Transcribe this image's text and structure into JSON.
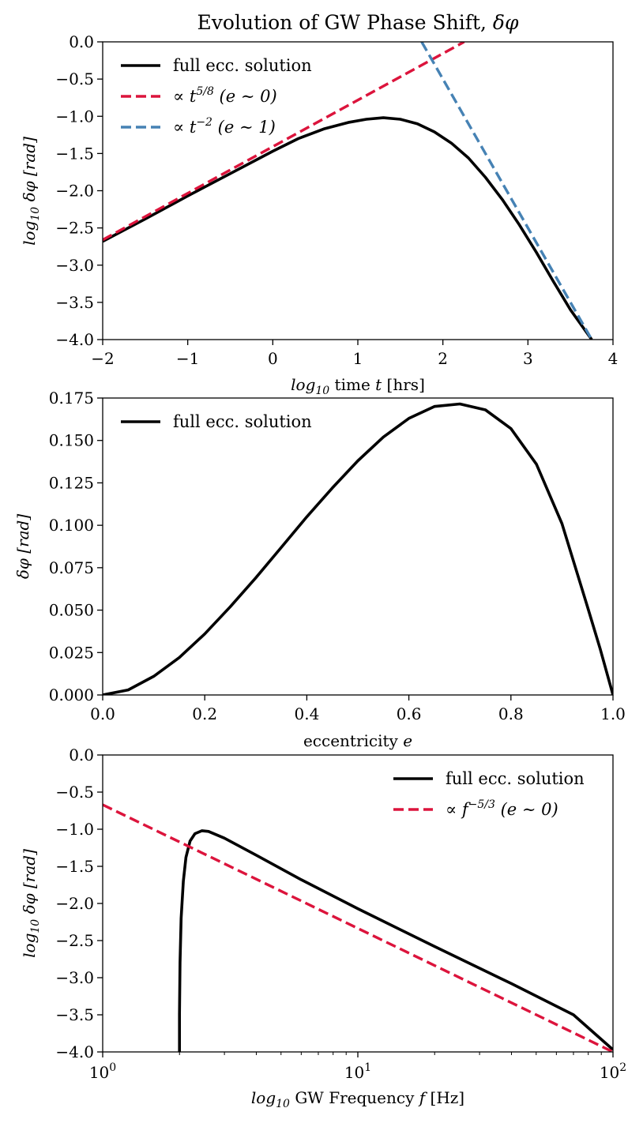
{
  "figure": {
    "title": "Evolution of GW Phase Shift, δφ"
  },
  "chart_data": [
    {
      "type": "line",
      "panel": "top",
      "xlabel": "log10 time  t [hrs]",
      "ylabel": "log10 δφ [rad]",
      "xlim": [
        -2,
        4
      ],
      "ylim": [
        -4.0,
        0.0
      ],
      "x_ticks": [
        "−2",
        "−1",
        "0",
        "1",
        "2",
        "3",
        "4"
      ],
      "y_ticks": [
        "0.0",
        "−0.5",
        "−1.0",
        "−1.5",
        "−2.0",
        "−2.5",
        "−3.0",
        "−3.5",
        "−4.0"
      ],
      "legend_position": "top-left",
      "series": [
        {
          "name": "full ecc. solution",
          "color": "#000000",
          "style": "solid",
          "x": [
            -2.0,
            -1.5,
            -1.0,
            -0.5,
            0.0,
            0.3,
            0.6,
            0.9,
            1.1,
            1.3,
            1.5,
            1.7,
            1.9,
            2.1,
            2.3,
            2.5,
            2.7,
            2.9,
            3.1,
            3.3,
            3.5,
            3.75
          ],
          "y": [
            -2.68,
            -2.38,
            -2.07,
            -1.77,
            -1.47,
            -1.3,
            -1.17,
            -1.08,
            -1.04,
            -1.02,
            -1.04,
            -1.1,
            -1.21,
            -1.36,
            -1.56,
            -1.82,
            -2.12,
            -2.46,
            -2.83,
            -3.22,
            -3.6,
            -4.0
          ]
        },
        {
          "name": "∝ t^{5/8} (e ∼ 0)",
          "color": "#dc143c",
          "style": "dashed",
          "x": [
            -2.0,
            2.25
          ],
          "y": [
            -2.66,
            0.0
          ]
        },
        {
          "name": "∝ t^{−2} (e ∼ 1)",
          "color": "#4682b4",
          "style": "dashed",
          "x": [
            1.75,
            3.75
          ],
          "y": [
            0.0,
            -4.0
          ]
        }
      ]
    },
    {
      "type": "line",
      "panel": "middle",
      "xlabel": "eccentricity e",
      "ylabel": "δφ [rad]",
      "xlim": [
        0.0,
        1.0
      ],
      "ylim": [
        0.0,
        0.175
      ],
      "x_ticks": [
        "0.0",
        "0.2",
        "0.4",
        "0.6",
        "0.8",
        "1.0"
      ],
      "y_ticks": [
        "0.175",
        "0.150",
        "0.125",
        "0.100",
        "0.075",
        "0.050",
        "0.025",
        "0.000"
      ],
      "legend_position": "top-left",
      "series": [
        {
          "name": "full ecc. solution",
          "color": "#000000",
          "style": "solid",
          "x": [
            0.0,
            0.05,
            0.1,
            0.15,
            0.2,
            0.25,
            0.3,
            0.35,
            0.4,
            0.45,
            0.5,
            0.55,
            0.6,
            0.65,
            0.7,
            0.75,
            0.8,
            0.85,
            0.9,
            0.95,
            0.975,
            1.0
          ],
          "y": [
            0.0,
            0.003,
            0.011,
            0.022,
            0.036,
            0.052,
            0.069,
            0.087,
            0.105,
            0.122,
            0.138,
            0.152,
            0.163,
            0.17,
            0.1715,
            0.168,
            0.157,
            0.136,
            0.101,
            0.052,
            0.027,
            0.0
          ]
        }
      ]
    },
    {
      "type": "line",
      "panel": "bottom",
      "xscale": "log",
      "xlabel": "log10 GW Frequency  f [Hz]",
      "ylabel": "log10 δφ [rad]",
      "xlim": [
        1,
        100
      ],
      "ylim": [
        -4.0,
        0.0
      ],
      "x_ticks": [
        "10^0",
        "10^1",
        "10^2"
      ],
      "y_ticks": [
        "0.0",
        "−0.5",
        "−1.0",
        "−1.5",
        "−2.0",
        "−2.5",
        "−3.0",
        "−3.5",
        "−4.0"
      ],
      "legend_position": "top-right",
      "series": [
        {
          "name": "full ecc. solution",
          "color": "#000000",
          "style": "solid",
          "x": [
            2.0,
            2.0,
            2.01,
            2.03,
            2.07,
            2.12,
            2.2,
            2.3,
            2.45,
            2.6,
            3.0,
            4.0,
            6.0,
            10.0,
            20.0,
            40.0,
            70.0,
            100.0
          ],
          "y": [
            -4.0,
            -3.5,
            -2.8,
            -2.2,
            -1.7,
            -1.38,
            -1.16,
            -1.06,
            -1.02,
            -1.03,
            -1.12,
            -1.35,
            -1.68,
            -2.07,
            -2.58,
            -3.08,
            -3.5,
            -3.97
          ]
        },
        {
          "name": "∝ f^{−5/3} (e ∼ 0)",
          "color": "#dc143c",
          "style": "dashed",
          "x": [
            1.0,
            100.0
          ],
          "y": [
            -0.67,
            -4.0
          ]
        }
      ]
    }
  ]
}
